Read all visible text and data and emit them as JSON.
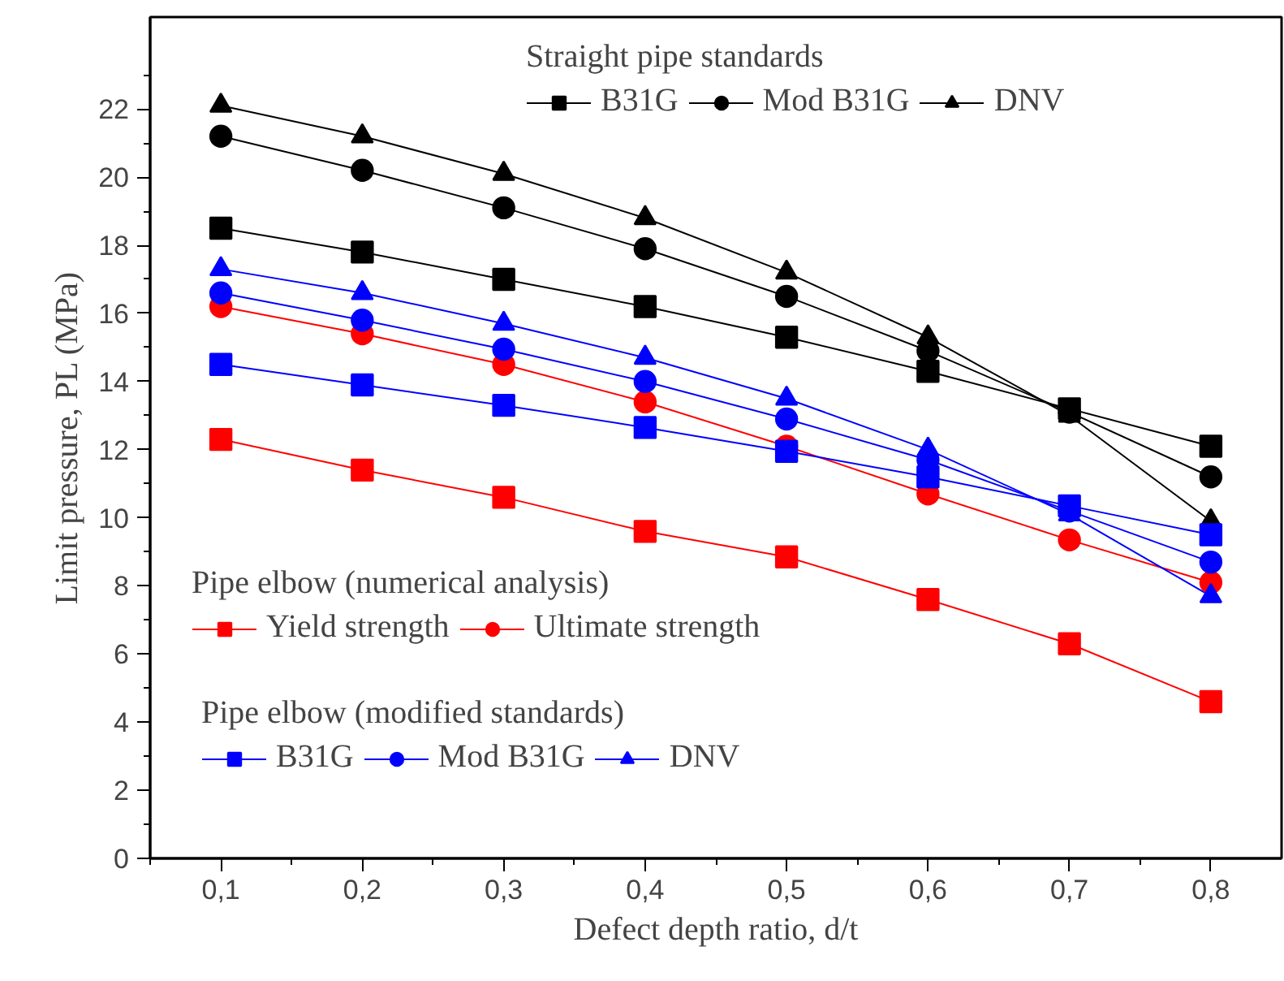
{
  "chart_data": {
    "type": "line",
    "xlabel": "Defect depth ratio, d/t",
    "ylabel": "Limit pressure, PL (MPa)",
    "x": [
      0.1,
      0.2,
      0.3,
      0.4,
      0.5,
      0.6,
      0.7,
      0.8
    ],
    "xlim": [
      0.05,
      0.85
    ],
    "ylim": [
      0,
      24.7
    ],
    "xticks": [
      {
        "value": 0.1,
        "label": "0,1"
      },
      {
        "value": 0.2,
        "label": "0,2"
      },
      {
        "value": 0.3,
        "label": "0,3"
      },
      {
        "value": 0.4,
        "label": "0,4"
      },
      {
        "value": 0.5,
        "label": "0,5"
      },
      {
        "value": 0.6,
        "label": "0,6"
      },
      {
        "value": 0.7,
        "label": "0,7"
      },
      {
        "value": 0.8,
        "label": "0,8"
      }
    ],
    "yticks": [
      0,
      2,
      4,
      6,
      8,
      10,
      12,
      14,
      16,
      18,
      20,
      22
    ],
    "grid": false,
    "legend": "left",
    "line_style": "solid",
    "annotations": [
      "Straight pipe standards",
      "Pipe elbow (numerical analysis)",
      "Pipe elbow (modified standards)"
    ],
    "series": [
      {
        "name": "B31G",
        "color": "#000000",
        "marker": "square",
        "values": [
          18.5,
          17.8,
          17.0,
          16.2,
          15.3,
          14.3,
          13.2,
          12.1
        ]
      },
      {
        "name": "Mod B31G",
        "color": "#000000",
        "marker": "circle",
        "values": [
          21.2,
          20.2,
          19.1,
          17.9,
          16.5,
          14.9,
          13.1,
          11.2
        ]
      },
      {
        "name": "DNV",
        "color": "#000000",
        "marker": "triangle",
        "values": [
          22.1,
          21.2,
          20.1,
          18.8,
          17.2,
          15.3,
          13.0,
          9.9
        ]
      },
      {
        "name": "Yield strength",
        "color": "#ff0000",
        "marker": "square",
        "values": [
          12.3,
          11.4,
          10.6,
          9.6,
          8.85,
          7.6,
          6.3,
          4.6
        ]
      },
      {
        "name": "Ultimate strength",
        "color": "#ff0000",
        "marker": "circle",
        "values": [
          16.2,
          15.4,
          14.5,
          13.4,
          12.1,
          10.7,
          9.35,
          8.1
        ]
      },
      {
        "name": "B31G",
        "color": "#0000ff",
        "marker": "square",
        "values": [
          14.5,
          13.9,
          13.3,
          12.65,
          11.95,
          11.2,
          10.35,
          9.5
        ]
      },
      {
        "name": "Mod B31G",
        "color": "#0000ff",
        "marker": "circle",
        "values": [
          16.6,
          15.8,
          14.95,
          14.0,
          12.9,
          11.7,
          10.2,
          8.7
        ]
      },
      {
        "name": "DNV",
        "color": "#0000ff",
        "marker": "triangle",
        "values": [
          17.3,
          16.6,
          15.7,
          14.7,
          13.5,
          12.0,
          10.1,
          7.7
        ]
      }
    ]
  }
}
